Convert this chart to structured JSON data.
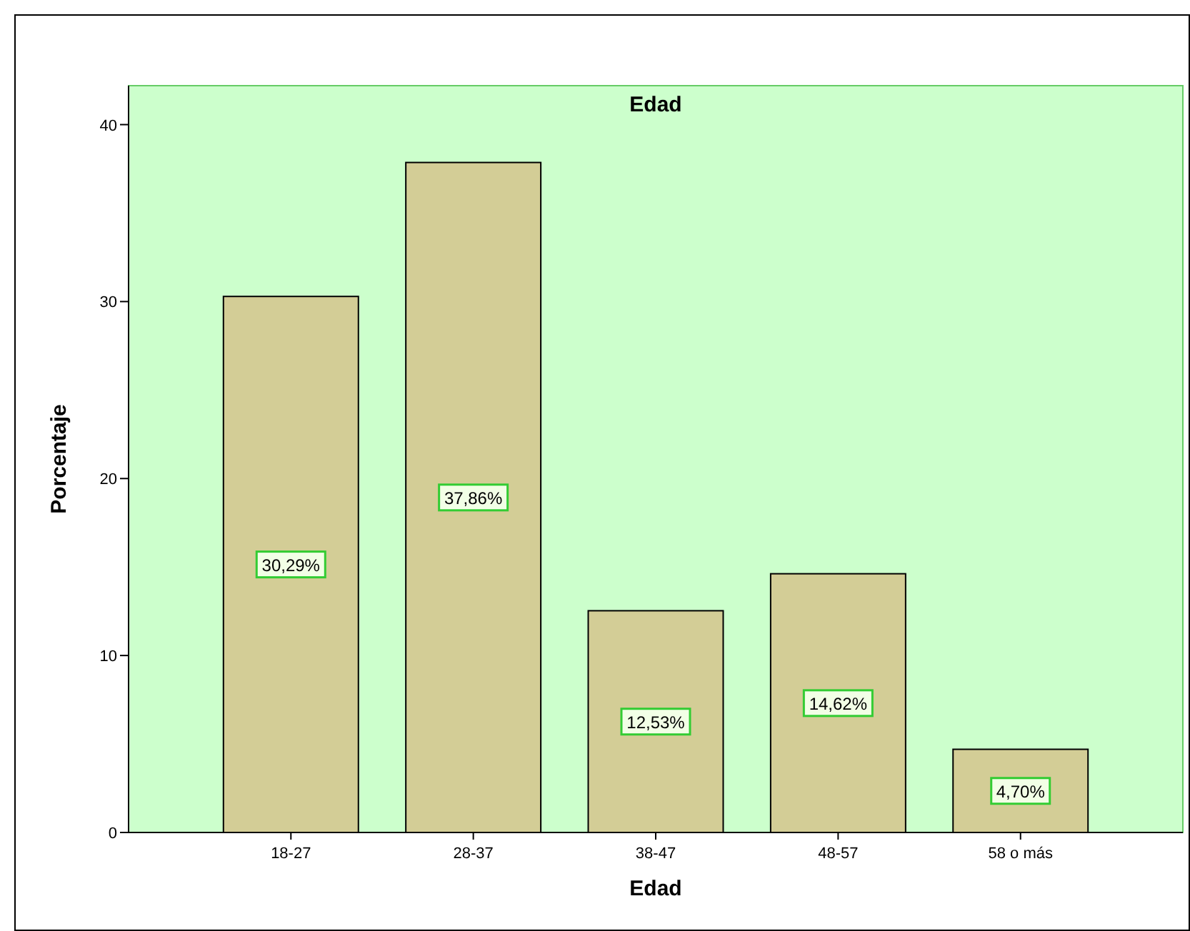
{
  "chart_data": {
    "type": "bar",
    "title": "Edad",
    "xlabel": "Edad",
    "ylabel": "Porcentaje",
    "categories": [
      "18-27",
      "28-37",
      "38-47",
      "48-57",
      "58 o más"
    ],
    "values": [
      30.29,
      37.86,
      12.53,
      14.62,
      4.7
    ],
    "value_labels": [
      "30,29%",
      "37,86%",
      "12,53%",
      "14,62%",
      "4,70%"
    ],
    "color": "#d3cd96",
    "ylim": [
      0,
      42.2
    ],
    "yticks": [
      0,
      10,
      20,
      30,
      40
    ]
  }
}
